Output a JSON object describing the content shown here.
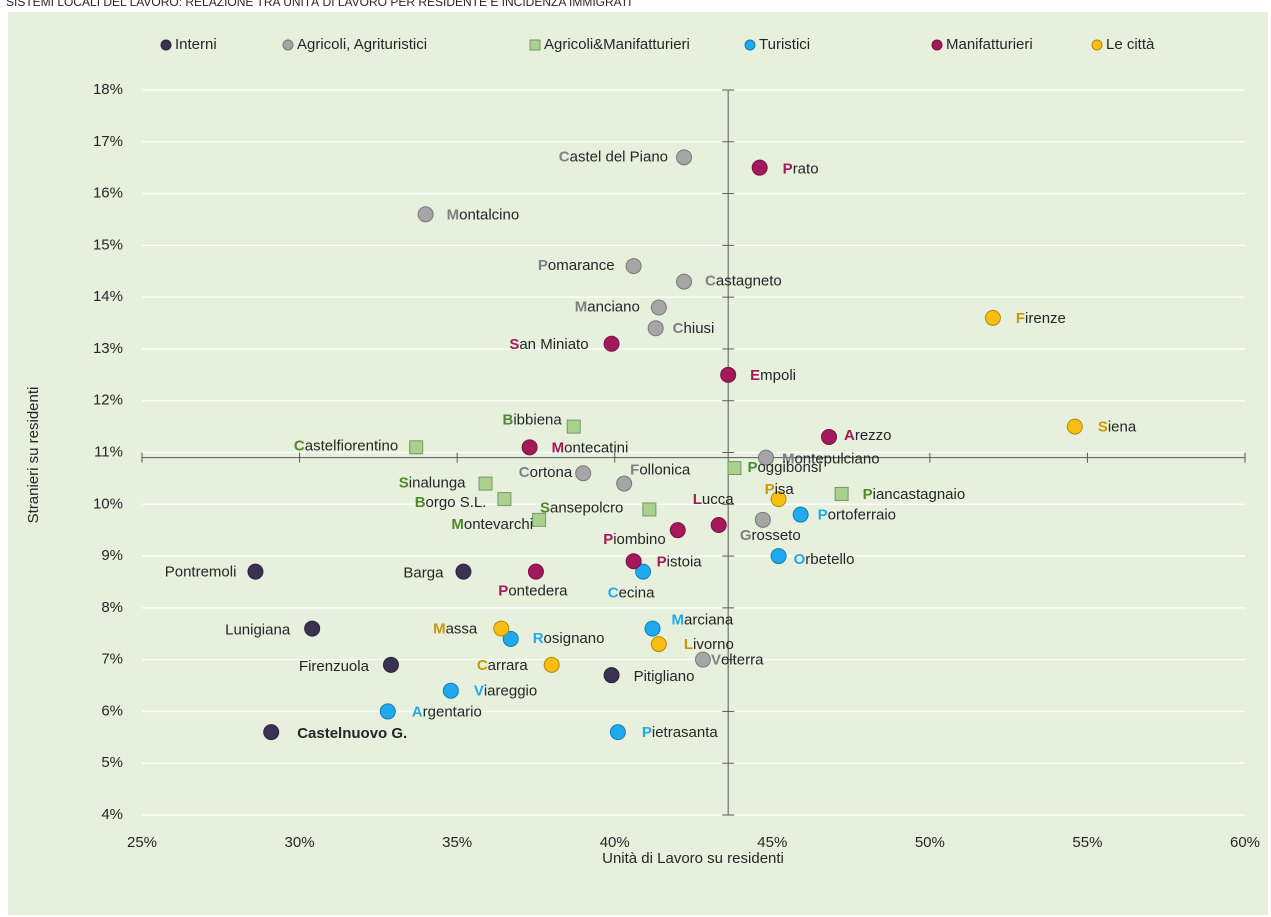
{
  "chart_data": {
    "type": "scatter",
    "title": "SISTEMI LOCALI DEL LAVORO: RELAZIONE TRA UNITÀ DI LAVORO PER RESIDENTE E INCIDENZA IMMIGRATI",
    "x_label": "Unità di Lavoro su residenti",
    "y_label": "Stranieri su residenti",
    "xlim": [
      25,
      60
    ],
    "ylim": [
      4,
      18
    ],
    "xticks": [
      {
        "value": 25,
        "label": "25%"
      },
      {
        "value": 30,
        "label": "30%"
      },
      {
        "value": 35,
        "label": "35%"
      },
      {
        "value": 40,
        "label": "40%"
      },
      {
        "value": 45,
        "label": "45%"
      },
      {
        "value": 50,
        "label": "50%"
      },
      {
        "value": 55,
        "label": "55%"
      },
      {
        "value": 60,
        "label": "60%"
      }
    ],
    "yticks": [
      {
        "value": 4,
        "label": "4%"
      },
      {
        "value": 5,
        "label": "5%"
      },
      {
        "value": 6,
        "label": "6%"
      },
      {
        "value": 7,
        "label": "7%"
      },
      {
        "value": 8,
        "label": "8%"
      },
      {
        "value": 9,
        "label": "9%"
      },
      {
        "value": 10,
        "label": "10%"
      },
      {
        "value": 11,
        "label": "11%"
      },
      {
        "value": 12,
        "label": "12%"
      },
      {
        "value": 13,
        "label": "13%"
      },
      {
        "value": 14,
        "label": "14%"
      },
      {
        "value": 15,
        "label": "15%"
      },
      {
        "value": 16,
        "label": "16%"
      },
      {
        "value": 17,
        "label": "17%"
      },
      {
        "value": 18,
        "label": "18%"
      }
    ],
    "x_cross": 43.6,
    "y_cross": 10.9,
    "grid": true,
    "legend": "top",
    "series": [
      {
        "name": "Interni",
        "color": "#3b3152",
        "marker": "circle",
        "labels": [
          "Pontremoli",
          "Barga",
          "Lunigiana",
          "Firenzuola",
          "Pitigliano",
          "Castelnuovo G."
        ],
        "x": [
          28.6,
          35.2,
          30.4,
          32.9,
          39.9,
          29.1
        ],
        "values": [
          8.7,
          8.7,
          7.6,
          6.9,
          6.7,
          5.6
        ],
        "bold_labels": [
          5
        ]
      },
      {
        "name": "Agricoli, Agrituristici",
        "color": "#a6a6a6",
        "label_color": "#808080",
        "marker": "circle",
        "labels": [
          "Castel del Piano",
          "Montalcino",
          "Pomarance",
          "Castagneto",
          "Manciano",
          "Chiusi",
          "Cortona",
          "Follonica",
          "Montepulciano",
          "Grosseto",
          "Volterra"
        ],
        "x": [
          42.2,
          34.0,
          40.6,
          42.2,
          41.4,
          41.3,
          39.0,
          40.3,
          44.8,
          44.7,
          42.8
        ],
        "values": [
          16.7,
          15.6,
          14.6,
          14.3,
          13.8,
          13.4,
          10.6,
          10.4,
          10.9,
          9.7,
          7.0
        ]
      },
      {
        "name": "Agricoli&Manifatturieri",
        "color": "#a9d18e",
        "label_color": "#4e8a2e",
        "marker": "square",
        "labels": [
          "Bibbiena",
          "Castelfiorentino",
          "Sinalunga",
          "Borgo S.L.",
          "Montevarchi",
          "Sansepolcro",
          "Poggibonsi",
          "Piancastagnaio"
        ],
        "x": [
          38.7,
          33.7,
          35.9,
          36.5,
          37.6,
          41.1,
          43.8,
          47.2
        ],
        "values": [
          11.5,
          11.1,
          10.4,
          10.1,
          9.7,
          9.9,
          10.7,
          10.2
        ]
      },
      {
        "name": "Turistici",
        "color": "#1faaf0",
        "label_color": "#1faaf0",
        "marker": "circle",
        "labels": [
          "Portoferraio",
          "Orbetello",
          "Cecina",
          "Marciana",
          "Rosignano",
          "Viareggio",
          "Argentario",
          "Pietrasanta"
        ],
        "x": [
          45.9,
          45.2,
          40.9,
          41.2,
          36.7,
          34.8,
          32.8,
          40.1
        ],
        "values": [
          9.8,
          9.0,
          8.7,
          7.6,
          7.4,
          6.4,
          6.0,
          5.6
        ]
      },
      {
        "name": "Manifatturieri",
        "color": "#a3195b",
        "label_color": "#a3195b",
        "marker": "circle",
        "labels": [
          "Prato",
          "San Miniato",
          "Empoli",
          "Arezzo",
          "Montecatini",
          "Lucca",
          "Piombino",
          "Pistoia",
          "Pontedera"
        ],
        "x": [
          44.6,
          39.9,
          43.6,
          46.8,
          37.3,
          43.3,
          42.0,
          40.6,
          37.5
        ],
        "values": [
          16.5,
          13.1,
          12.5,
          11.3,
          11.1,
          9.6,
          9.5,
          8.9,
          8.7
        ]
      },
      {
        "name": "Le città",
        "color": "#f9be10",
        "label_color": "#c99a00",
        "marker": "circle",
        "labels": [
          "Firenze",
          "Siena",
          "Pisa",
          "Massa",
          "Livorno",
          "Carrara"
        ],
        "x": [
          52.0,
          54.6,
          45.2,
          36.4,
          41.4,
          38.0
        ],
        "values": [
          13.6,
          11.5,
          10.1,
          7.6,
          7.3,
          6.9
        ]
      }
    ]
  }
}
